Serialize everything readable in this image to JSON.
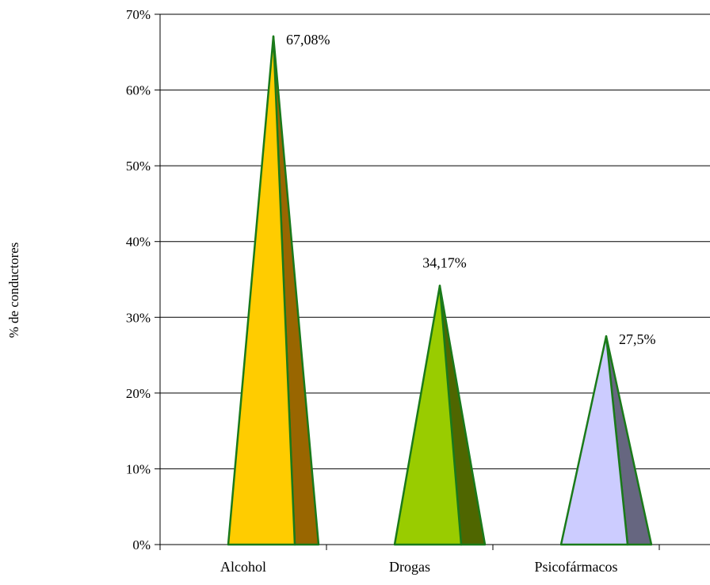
{
  "chart_data": {
    "type": "bar",
    "shape": "pyramid",
    "categories": [
      "Alcohol",
      "Drogas",
      "Psicofármacos"
    ],
    "values": [
      67.08,
      34.17,
      27.5
    ],
    "data_labels": [
      "67,08%",
      "34,17%",
      "27,5%"
    ],
    "ylabel": "% de conductores",
    "xlabel": "",
    "title": "",
    "ylim": [
      0,
      70
    ],
    "y_ticks": [
      0,
      10,
      20,
      30,
      40,
      50,
      60,
      70
    ],
    "y_tick_labels": [
      "0%",
      "10%",
      "20%",
      "30%",
      "40%",
      "50%",
      "60%",
      "70%"
    ],
    "grid": true,
    "colors": {
      "front": [
        "#ffcc00",
        "#99cc00",
        "#ccccff"
      ],
      "side": [
        "#996600",
        "#4f6600",
        "#666680"
      ],
      "outline": "#1a7a1a",
      "gridline": "#000000"
    }
  }
}
